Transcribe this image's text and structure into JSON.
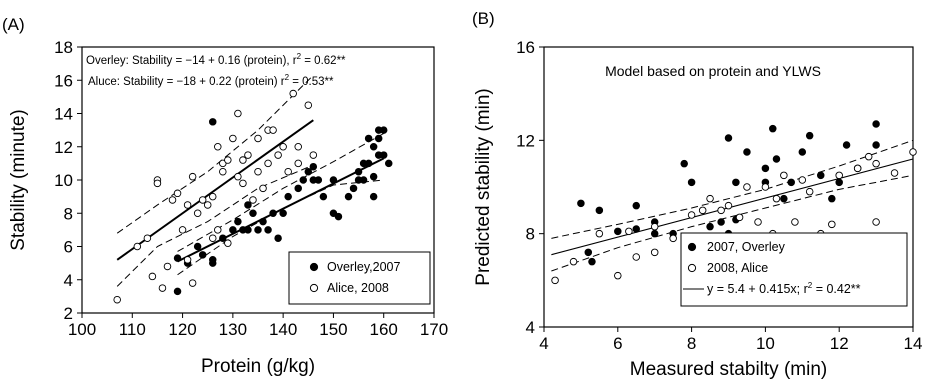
{
  "chart_data": [
    {
      "type": "scatter",
      "panel_label": "(A)",
      "xlabel": "Protein (g/kg)",
      "ylabel": "Stability (minute)",
      "xlim": [
        100,
        170
      ],
      "ylim": [
        2,
        18
      ],
      "xticks": [
        100,
        110,
        120,
        130,
        140,
        150,
        160,
        170
      ],
      "yticks": [
        2,
        4,
        6,
        8,
        10,
        12,
        14,
        16,
        18
      ],
      "annotation_overley": "Overley: Stability = −14 + 0.16 (protein), r",
      "annotation_overley_stat": " = 0.62**",
      "annotation_alice": "Aluce: Stability = −18 + 0.22 (protein) r",
      "annotation_alice_stat": " = 0.53**",
      "legend_position": "bottom-right",
      "series": [
        {
          "name": "Overley,2007",
          "marker": "filled-circle",
          "points": [
            [
              119,
              3.3
            ],
            [
              119,
              5.3
            ],
            [
              121,
              5.0
            ],
            [
              123,
              6.0
            ],
            [
              124,
              5.5
            ],
            [
              126,
              5.0
            ],
            [
              126,
              5.2
            ],
            [
              126,
              13.5
            ],
            [
              128,
              6.5
            ],
            [
              130,
              7.0
            ],
            [
              131,
              7.5
            ],
            [
              132,
              7.0
            ],
            [
              133,
              7.0
            ],
            [
              133,
              8.5
            ],
            [
              134,
              8.0
            ],
            [
              135,
              7.0
            ],
            [
              136,
              7.5
            ],
            [
              137,
              7.0
            ],
            [
              138,
              8.0
            ],
            [
              139,
              6.5
            ],
            [
              140,
              8.0
            ],
            [
              141,
              9.0
            ],
            [
              143,
              9.5
            ],
            [
              144,
              10.0
            ],
            [
              145,
              10.5
            ],
            [
              146,
              10.0
            ],
            [
              146,
              10.8
            ],
            [
              147,
              10.0
            ],
            [
              148,
              9.0
            ],
            [
              150,
              10.0
            ],
            [
              150,
              8.0
            ],
            [
              151,
              7.8
            ],
            [
              153,
              9.0
            ],
            [
              154,
              9.5
            ],
            [
              155,
              10.0
            ],
            [
              155,
              10.5
            ],
            [
              156,
              11.0
            ],
            [
              156,
              10.0
            ],
            [
              157,
              12.5
            ],
            [
              157,
              11.0
            ],
            [
              158,
              12.0
            ],
            [
              158,
              9.0
            ],
            [
              158,
              10.2
            ],
            [
              159,
              11.5
            ],
            [
              159,
              12.5
            ],
            [
              159,
              13.0
            ],
            [
              160,
              13.0
            ],
            [
              160,
              11.5
            ],
            [
              161,
              11.0
            ]
          ],
          "fit": {
            "x1": 119,
            "y1": 5.1,
            "x2": 160,
            "y2": 11.3
          },
          "ci_upper": [
            [
              119,
              5.7
            ],
            [
              130,
              7.6
            ],
            [
              140,
              9.5
            ],
            [
              150,
              11.1
            ],
            [
              160,
              12.8
            ]
          ],
          "ci_lower": [
            [
              119,
              4.3
            ],
            [
              130,
              6.6
            ],
            [
              140,
              8.3
            ],
            [
              150,
              9.7
            ],
            [
              160,
              10.0
            ]
          ]
        },
        {
          "name": "Alice, 2008",
          "marker": "open-circle",
          "points": [
            [
              107,
              2.8
            ],
            [
              111,
              6.0
            ],
            [
              113,
              6.5
            ],
            [
              114,
              4.2
            ],
            [
              115,
              10.0
            ],
            [
              115,
              9.8
            ],
            [
              116,
              3.5
            ],
            [
              117,
              4.8
            ],
            [
              118,
              8.8
            ],
            [
              119,
              9.2
            ],
            [
              120,
              7.0
            ],
            [
              121,
              5.2
            ],
            [
              121,
              8.5
            ],
            [
              122,
              3.8
            ],
            [
              122,
              10.2
            ],
            [
              123,
              8.0
            ],
            [
              124,
              8.8
            ],
            [
              125,
              8.5
            ],
            [
              126,
              9.0
            ],
            [
              126,
              6.5
            ],
            [
              127,
              7.0
            ],
            [
              127,
              12.0
            ],
            [
              128,
              10.5
            ],
            [
              128,
              11.0
            ],
            [
              129,
              11.2
            ],
            [
              129,
              6.2
            ],
            [
              130,
              12.5
            ],
            [
              131,
              10.2
            ],
            [
              131,
              14.0
            ],
            [
              132,
              9.8
            ],
            [
              132,
              11.2
            ],
            [
              133,
              11.5
            ],
            [
              134,
              8.8
            ],
            [
              135,
              12.5
            ],
            [
              135,
              10.5
            ],
            [
              136,
              9.5
            ],
            [
              137,
              11.0
            ],
            [
              137,
              13.0
            ],
            [
              138,
              13.0
            ],
            [
              139,
              11.5
            ],
            [
              140,
              12.0
            ],
            [
              141,
              10.5
            ],
            [
              142,
              15.2
            ],
            [
              143,
              12.0
            ],
            [
              143,
              11.0
            ],
            [
              145,
              14.5
            ],
            [
              146,
              11.5
            ]
          ],
          "fit": {
            "x1": 107,
            "y1": 5.2,
            "x2": 146,
            "y2": 13.6
          },
          "ci_upper": [
            [
              107,
              6.8
            ],
            [
              115,
              8.5
            ],
            [
              125,
              10.5
            ],
            [
              135,
              13.0
            ],
            [
              146,
              16.3
            ]
          ],
          "ci_lower": [
            [
              107,
              3.6
            ],
            [
              115,
              6.0
            ],
            [
              125,
              7.5
            ],
            [
              135,
              9.5
            ],
            [
              146,
              10.9
            ]
          ]
        }
      ]
    },
    {
      "type": "scatter",
      "panel_label": "(B)",
      "title": "Model based on protein and YLWS",
      "xlabel": "Measured stabilty (min)",
      "ylabel": "Predicted stability (min)",
      "xlim": [
        4,
        14
      ],
      "ylim": [
        4,
        16
      ],
      "xticks": [
        4,
        6,
        8,
        10,
        12,
        14
      ],
      "yticks": [
        4,
        8,
        12,
        16
      ],
      "legend_position": "bottom-right",
      "fit_label": "y = 5.4 + 0.415x; r",
      "fit_label_stat": " = 0.42**",
      "fit": {
        "x1": 4.2,
        "y1": 7.1,
        "x2": 14,
        "y2": 11.2
      },
      "ci_upper": [
        [
          4.2,
          7.8
        ],
        [
          6,
          8.4
        ],
        [
          8,
          9.1
        ],
        [
          10,
          9.9
        ],
        [
          12,
          10.9
        ],
        [
          14,
          12.0
        ]
      ],
      "ci_lower": [
        [
          4.2,
          6.4
        ],
        [
          6,
          7.4
        ],
        [
          8,
          8.3
        ],
        [
          10,
          9.1
        ],
        [
          12,
          9.9
        ],
        [
          14,
          10.5
        ]
      ],
      "series": [
        {
          "name": "2007, Overley",
          "marker": "filled-circle",
          "points": [
            [
              5.0,
              9.3
            ],
            [
              5.2,
              7.2
            ],
            [
              5.3,
              6.8
            ],
            [
              5.5,
              9.0
            ],
            [
              6.0,
              8.1
            ],
            [
              6.5,
              8.2
            ],
            [
              6.5,
              9.2
            ],
            [
              7.0,
              8.5
            ],
            [
              7.0,
              8.0
            ],
            [
              7.5,
              8.0
            ],
            [
              7.8,
              11.0
            ],
            [
              8.0,
              10.2
            ],
            [
              8.5,
              8.3
            ],
            [
              8.8,
              8.5
            ],
            [
              9.0,
              12.1
            ],
            [
              9.2,
              10.2
            ],
            [
              9.2,
              8.6
            ],
            [
              9.0,
              8.0
            ],
            [
              9.5,
              11.5
            ],
            [
              10.0,
              10.8
            ],
            [
              10.0,
              10.2
            ],
            [
              10.2,
              12.5
            ],
            [
              10.3,
              11.2
            ],
            [
              10.5,
              9.5
            ],
            [
              10.7,
              10.2
            ],
            [
              11.0,
              11.5
            ],
            [
              11.2,
              12.2
            ],
            [
              11.5,
              10.5
            ],
            [
              11.8,
              9.5
            ],
            [
              12.0,
              10.2
            ],
            [
              12.2,
              11.8
            ],
            [
              12.5,
              10.8
            ],
            [
              13.0,
              12.7
            ],
            [
              13.0,
              11.8
            ],
            [
              13.5,
              6.8
            ]
          ],
          "marker_style": "filled"
        },
        {
          "name": "2008, Alice",
          "marker": "open-circle",
          "points": [
            [
              4.3,
              6.0
            ],
            [
              4.8,
              6.8
            ],
            [
              5.5,
              8.0
            ],
            [
              6.0,
              6.2
            ],
            [
              6.3,
              8.1
            ],
            [
              6.5,
              7.0
            ],
            [
              7.0,
              7.2
            ],
            [
              7.0,
              8.3
            ],
            [
              7.5,
              7.8
            ],
            [
              8.0,
              8.8
            ],
            [
              8.3,
              9.0
            ],
            [
              8.5,
              9.5
            ],
            [
              8.7,
              6.4
            ],
            [
              8.8,
              9.0
            ],
            [
              9.0,
              9.2
            ],
            [
              9.3,
              8.7
            ],
            [
              9.5,
              10.0
            ],
            [
              9.5,
              7.4
            ],
            [
              9.8,
              8.5
            ],
            [
              10.0,
              10.0
            ],
            [
              10.2,
              8.0
            ],
            [
              10.3,
              9.5
            ],
            [
              10.5,
              10.5
            ],
            [
              10.8,
              8.5
            ],
            [
              11.0,
              10.3
            ],
            [
              11.2,
              9.8
            ],
            [
              11.5,
              8.0
            ],
            [
              11.8,
              8.4
            ],
            [
              12.0,
              10.5
            ],
            [
              12.0,
              7.0
            ],
            [
              12.5,
              10.8
            ],
            [
              12.8,
              11.3
            ],
            [
              13.0,
              8.5
            ],
            [
              13.0,
              11.0
            ],
            [
              13.5,
              10.6
            ],
            [
              14.0,
              11.5
            ]
          ]
        }
      ]
    }
  ]
}
